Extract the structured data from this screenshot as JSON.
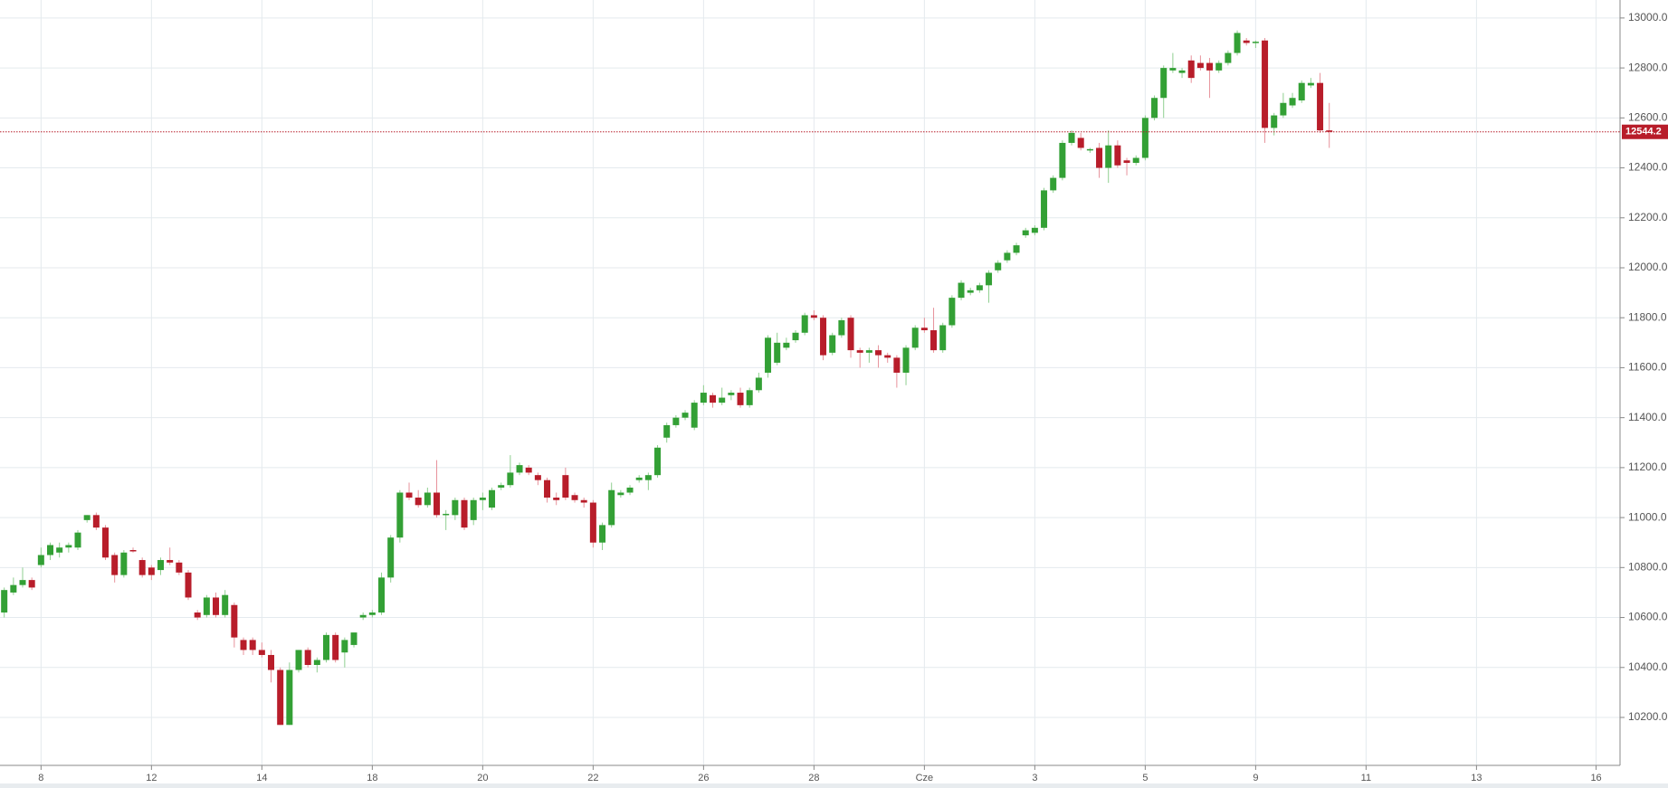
{
  "chart_data": {
    "type": "candlestick",
    "up_color": "#33a035",
    "down_color": "#b81d2a",
    "up_wick_color": "#8fcf90",
    "down_wick_color": "#e7929b",
    "grid": true,
    "xlim": [
      -0.46,
      175.6
    ],
    "ylim": [
      10008,
      13072
    ],
    "xticks": [
      {
        "value": 4,
        "label": "8"
      },
      {
        "value": 16,
        "label": "12"
      },
      {
        "value": 28,
        "label": "14"
      },
      {
        "value": 40,
        "label": "18"
      },
      {
        "value": 52,
        "label": "20"
      },
      {
        "value": 64,
        "label": "22"
      },
      {
        "value": 76,
        "label": "26"
      },
      {
        "value": 88,
        "label": "28"
      },
      {
        "value": 100,
        "label": "Cze"
      },
      {
        "value": 112,
        "label": "3"
      },
      {
        "value": 124,
        "label": "5"
      },
      {
        "value": 136,
        "label": "9"
      },
      {
        "value": 148,
        "label": "11"
      },
      {
        "value": 160,
        "label": "13"
      },
      {
        "value": 173,
        "label": "16"
      }
    ],
    "yticks": [
      {
        "value": 10200,
        "label": "10200.0"
      },
      {
        "value": 10400,
        "label": "10400.0"
      },
      {
        "value": 10600,
        "label": "10600.0"
      },
      {
        "value": 10800,
        "label": "10800.0"
      },
      {
        "value": 11000,
        "label": "11000.0"
      },
      {
        "value": 11200,
        "label": "11200.0"
      },
      {
        "value": 11400,
        "label": "11400.0"
      },
      {
        "value": 11600,
        "label": "11600.0"
      },
      {
        "value": 11800,
        "label": "11800.0"
      },
      {
        "value": 12000,
        "label": "12000.0"
      },
      {
        "value": 12200,
        "label": "12200.0"
      },
      {
        "value": 12400,
        "label": "12400.0"
      },
      {
        "value": 12600,
        "label": "12600.0"
      },
      {
        "value": 12800,
        "label": "12800.0"
      },
      {
        "value": 13000,
        "label": "13000.0"
      }
    ],
    "last_price": 12544.2,
    "last_price_color": "#b81d2a",
    "ohlc": [
      [
        10620,
        10720,
        10600,
        10710
      ],
      [
        10700,
        10760,
        10690,
        10730
      ],
      [
        10730,
        10800,
        10720,
        10750
      ],
      [
        10750,
        10760,
        10710,
        10720
      ],
      [
        10810,
        10880,
        10800,
        10850
      ],
      [
        10850,
        10900,
        10830,
        10890
      ],
      [
        10860,
        10900,
        10840,
        10880
      ],
      [
        10880,
        10900,
        10860,
        10890
      ],
      [
        10880,
        10950,
        10870,
        10940
      ],
      [
        10990,
        11010,
        10980,
        11010
      ],
      [
        11010,
        11020,
        10950,
        10960
      ],
      [
        10960,
        10970,
        10830,
        10840
      ],
      [
        10850,
        10860,
        10740,
        10770
      ],
      [
        10770,
        10870,
        10760,
        10860
      ],
      [
        10870,
        10880,
        10860,
        10865
      ],
      [
        10830,
        10840,
        10760,
        10770
      ],
      [
        10800,
        10810,
        10750,
        10770
      ],
      [
        10790,
        10840,
        10770,
        10830
      ],
      [
        10830,
        10880,
        10810,
        10820
      ],
      [
        10820,
        10830,
        10770,
        10780
      ],
      [
        10780,
        10790,
        10670,
        10680
      ],
      [
        10620,
        10630,
        10590,
        10600
      ],
      [
        10610,
        10690,
        10600,
        10680
      ],
      [
        10680,
        10700,
        10600,
        10610
      ],
      [
        10610,
        10710,
        10600,
        10690
      ],
      [
        10650,
        10660,
        10480,
        10520
      ],
      [
        10510,
        10520,
        10450,
        10470
      ],
      [
        10510,
        10520,
        10450,
        10470
      ],
      [
        10470,
        10500,
        10440,
        10450
      ],
      [
        10450,
        10470,
        10340,
        10390
      ],
      [
        10390,
        10400,
        10170,
        10170
      ],
      [
        10170,
        10420,
        10170,
        10390
      ],
      [
        10390,
        10470,
        10380,
        10470
      ],
      [
        10470,
        10480,
        10400,
        10410
      ],
      [
        10410,
        10440,
        10380,
        10430
      ],
      [
        10430,
        10540,
        10420,
        10530
      ],
      [
        10530,
        10540,
        10420,
        10430
      ],
      [
        10460,
        10520,
        10400,
        10510
      ],
      [
        10490,
        10540,
        10480,
        10540
      ],
      [
        10600,
        10620,
        10590,
        10610
      ],
      [
        10610,
        10630,
        10600,
        10620
      ],
      [
        10620,
        10780,
        10610,
        10760
      ],
      [
        10760,
        10930,
        10740,
        10920
      ],
      [
        10920,
        11110,
        10900,
        11100
      ],
      [
        11100,
        11140,
        11070,
        11080
      ],
      [
        11080,
        11110,
        11040,
        11050
      ],
      [
        11050,
        11120,
        11040,
        11100
      ],
      [
        11100,
        11230,
        11000,
        11010
      ],
      [
        11010,
        11030,
        10950,
        11015
      ],
      [
        11010,
        11080,
        10990,
        11070
      ],
      [
        11070,
        11080,
        10950,
        10960
      ],
      [
        10990,
        11080,
        10970,
        11070
      ],
      [
        11070,
        11100,
        11030,
        11080
      ],
      [
        11040,
        11120,
        11030,
        11110
      ],
      [
        11120,
        11140,
        11110,
        11130
      ],
      [
        11130,
        11250,
        11120,
        11180
      ],
      [
        11180,
        11220,
        11170,
        11210
      ],
      [
        11200,
        11210,
        11170,
        11180
      ],
      [
        11170,
        11180,
        11130,
        11150
      ],
      [
        11150,
        11160,
        11060,
        11080
      ],
      [
        11080,
        11100,
        11050,
        11070
      ],
      [
        11170,
        11200,
        11070,
        11080
      ],
      [
        11090,
        11100,
        11060,
        11070
      ],
      [
        11070,
        11080,
        11040,
        11060
      ],
      [
        11060,
        11070,
        10880,
        10900
      ],
      [
        10900,
        10980,
        10870,
        10970
      ],
      [
        10970,
        11140,
        10960,
        11110
      ],
      [
        11090,
        11110,
        11080,
        11100
      ],
      [
        11100,
        11130,
        11090,
        11120
      ],
      [
        11150,
        11170,
        11140,
        11160
      ],
      [
        11150,
        11180,
        11110,
        11170
      ],
      [
        11170,
        11290,
        11160,
        11280
      ],
      [
        11320,
        11380,
        11300,
        11370
      ],
      [
        11370,
        11410,
        11360,
        11400
      ],
      [
        11400,
        11430,
        11390,
        11420
      ],
      [
        11360,
        11470,
        11350,
        11460
      ],
      [
        11460,
        11530,
        11450,
        11500
      ],
      [
        11490,
        11500,
        11440,
        11460
      ],
      [
        11460,
        11520,
        11450,
        11480
      ],
      [
        11490,
        11510,
        11470,
        11500
      ],
      [
        11500,
        11520,
        11440,
        11450
      ],
      [
        11450,
        11520,
        11440,
        11510
      ],
      [
        11510,
        11580,
        11500,
        11560
      ],
      [
        11580,
        11730,
        11560,
        11720
      ],
      [
        11620,
        11740,
        11610,
        11700
      ],
      [
        11680,
        11720,
        11670,
        11700
      ],
      [
        11710,
        11750,
        11700,
        11740
      ],
      [
        11740,
        11820,
        11730,
        11810
      ],
      [
        11810,
        11830,
        11790,
        11800
      ],
      [
        11800,
        11810,
        11630,
        11650
      ],
      [
        11660,
        11740,
        11650,
        11730
      ],
      [
        11730,
        11800,
        11720,
        11790
      ],
      [
        11800,
        11810,
        11640,
        11670
      ],
      [
        11670,
        11680,
        11600,
        11660
      ],
      [
        11660,
        11680,
        11620,
        11670
      ],
      [
        11670,
        11690,
        11600,
        11650
      ],
      [
        11650,
        11660,
        11620,
        11640
      ],
      [
        11640,
        11650,
        11520,
        11580
      ],
      [
        11580,
        11690,
        11530,
        11680
      ],
      [
        11680,
        11770,
        11670,
        11760
      ],
      [
        11760,
        11800,
        11740,
        11750
      ],
      [
        11750,
        11840,
        11660,
        11670
      ],
      [
        11670,
        11780,
        11660,
        11770
      ],
      [
        11770,
        11890,
        11760,
        11880
      ],
      [
        11880,
        11950,
        11870,
        11940
      ],
      [
        11900,
        11920,
        11890,
        11910
      ],
      [
        11910,
        11940,
        11900,
        11930
      ],
      [
        11930,
        11990,
        11860,
        11980
      ],
      [
        11990,
        12030,
        11980,
        12020
      ],
      [
        12030,
        12070,
        12020,
        12060
      ],
      [
        12060,
        12100,
        12050,
        12090
      ],
      [
        12130,
        12160,
        12120,
        12150
      ],
      [
        12140,
        12170,
        12130,
        12160
      ],
      [
        12160,
        12320,
        12150,
        12310
      ],
      [
        12310,
        12370,
        12300,
        12360
      ],
      [
        12360,
        12510,
        12350,
        12500
      ],
      [
        12500,
        12550,
        12490,
        12540
      ],
      [
        12520,
        12540,
        12470,
        12480
      ],
      [
        12470,
        12480,
        12460,
        12475
      ],
      [
        12480,
        12500,
        12360,
        12400
      ],
      [
        12400,
        12550,
        12340,
        12490
      ],
      [
        12490,
        12510,
        12400,
        12410
      ],
      [
        12430,
        12440,
        12370,
        12420
      ],
      [
        12420,
        12450,
        12410,
        12440
      ],
      [
        12440,
        12610,
        12430,
        12600
      ],
      [
        12600,
        12690,
        12590,
        12680
      ],
      [
        12680,
        12810,
        12600,
        12800
      ],
      [
        12790,
        12860,
        12780,
        12800
      ],
      [
        12780,
        12800,
        12760,
        12790
      ],
      [
        12830,
        12850,
        12740,
        12760
      ],
      [
        12820,
        12850,
        12790,
        12800
      ],
      [
        12820,
        12840,
        12680,
        12790
      ],
      [
        12790,
        12830,
        12780,
        12820
      ],
      [
        12820,
        12870,
        12810,
        12860
      ],
      [
        12860,
        12950,
        12850,
        12940
      ],
      [
        12910,
        12920,
        12890,
        12900
      ],
      [
        12900,
        12910,
        12880,
        12905
      ],
      [
        12910,
        12920,
        12500,
        12560
      ],
      [
        12560,
        12620,
        12530,
        12610
      ],
      [
        12610,
        12700,
        12600,
        12660
      ],
      [
        12650,
        12700,
        12640,
        12680
      ],
      [
        12670,
        12750,
        12660,
        12740
      ],
      [
        12730,
        12760,
        12720,
        12740
      ],
      [
        12740,
        12780,
        12540,
        12550
      ],
      [
        12550,
        12660,
        12480,
        12544.2
      ]
    ]
  }
}
